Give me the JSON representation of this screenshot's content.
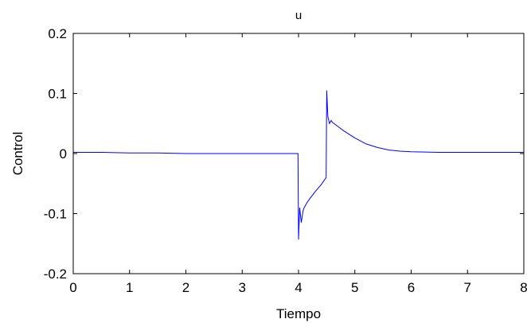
{
  "chart_data": {
    "type": "line",
    "title": "u",
    "xlabel": "Tiempo",
    "ylabel": "Control",
    "xlim": [
      0,
      8
    ],
    "ylim": [
      -0.2,
      0.2
    ],
    "x_ticks": [
      0,
      1,
      2,
      3,
      4,
      5,
      6,
      7,
      8
    ],
    "x_tick_labels": [
      "0",
      "1",
      "2",
      "3",
      "4",
      "5",
      "6",
      "7",
      "8"
    ],
    "y_ticks": [
      -0.2,
      -0.1,
      0,
      0.1,
      0.2
    ],
    "y_tick_labels": [
      "-0.2",
      "-0.1",
      "0",
      "0.1",
      "0.2"
    ],
    "grid": false,
    "series": [
      {
        "color": "#0000ff",
        "x": [
          0,
          0.5,
          1,
          1.5,
          2,
          2.5,
          3,
          3.5,
          3.99,
          4.0,
          4.02,
          4.05,
          4.08,
          4.1,
          4.15,
          4.2,
          4.3,
          4.4,
          4.49,
          4.5,
          4.52,
          4.55,
          4.58,
          4.6,
          4.7,
          4.8,
          5.0,
          5.2,
          5.4,
          5.6,
          5.8,
          6.0,
          6.5,
          7.0,
          7.5,
          8.0
        ],
        "y": [
          0.002,
          0.002,
          0.001,
          0.001,
          0.0,
          0.0,
          0.0,
          0.0,
          0.0,
          -0.143,
          -0.09,
          -0.115,
          -0.095,
          -0.09,
          -0.082,
          -0.075,
          -0.063,
          -0.052,
          -0.04,
          0.105,
          0.062,
          0.05,
          0.055,
          0.052,
          0.045,
          0.038,
          0.026,
          0.016,
          0.01,
          0.006,
          0.004,
          0.003,
          0.002,
          0.002,
          0.002,
          0.002
        ]
      }
    ]
  }
}
